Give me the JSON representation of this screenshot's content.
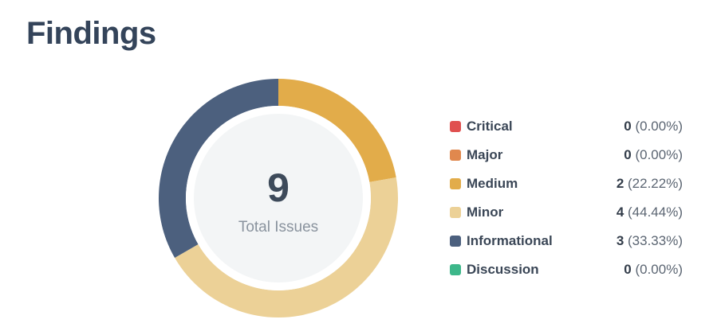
{
  "page": {
    "title": "Findings"
  },
  "summary": {
    "total": "9",
    "total_label": "Total Issues"
  },
  "legend": [
    {
      "label": "Critical",
      "count": "0",
      "percent": "(0.00%)",
      "color": "#e0504f"
    },
    {
      "label": "Major",
      "count": "0",
      "percent": "(0.00%)",
      "color": "#e0884e"
    },
    {
      "label": "Medium",
      "count": "2",
      "percent": "(22.22%)",
      "color": "#e2ac4a"
    },
    {
      "label": "Minor",
      "count": "4",
      "percent": "(44.44%)",
      "color": "#ecd197"
    },
    {
      "label": "Informational",
      "count": "3",
      "percent": "(33.33%)",
      "color": "#4c607e"
    },
    {
      "label": "Discussion",
      "count": "0",
      "percent": "(0.00%)",
      "color": "#3db78a"
    }
  ],
  "chart_data": {
    "type": "pie",
    "style": "donut",
    "categories": [
      "Critical",
      "Major",
      "Medium",
      "Minor",
      "Informational",
      "Discussion"
    ],
    "values": [
      0,
      0,
      2,
      4,
      3,
      0
    ],
    "total": 9,
    "legend_position": "right",
    "colors": [
      "#e0504f",
      "#e0884e",
      "#e2ac4a",
      "#ecd197",
      "#4c607e",
      "#3db78a"
    ],
    "inner_fill": "#f3f5f6",
    "start": "top",
    "direction": "clockwise"
  }
}
